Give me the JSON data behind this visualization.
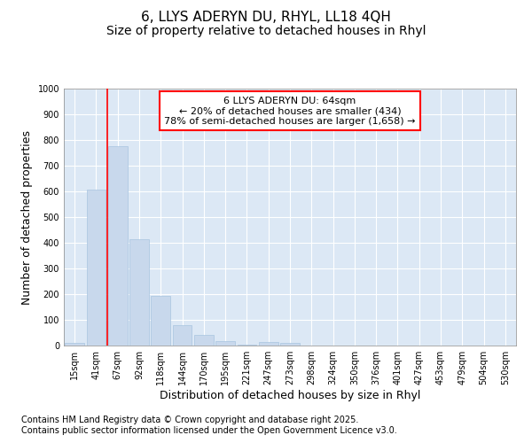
{
  "title_line1": "6, LLYS ADERYN DU, RHYL, LL18 4QH",
  "title_line2": "Size of property relative to detached houses in Rhyl",
  "xlabel": "Distribution of detached houses by size in Rhyl",
  "ylabel": "Number of detached properties",
  "categories": [
    "15sqm",
    "41sqm",
    "67sqm",
    "92sqm",
    "118sqm",
    "144sqm",
    "170sqm",
    "195sqm",
    "221sqm",
    "247sqm",
    "273sqm",
    "298sqm",
    "324sqm",
    "350sqm",
    "376sqm",
    "401sqm",
    "427sqm",
    "453sqm",
    "479sqm",
    "504sqm",
    "530sqm"
  ],
  "values": [
    12,
    608,
    775,
    413,
    192,
    78,
    40,
    17,
    5,
    15,
    10,
    0,
    0,
    0,
    0,
    0,
    0,
    0,
    0,
    0,
    0
  ],
  "bar_color": "#c8d8ec",
  "bar_edgecolor": "#a8c4e0",
  "redline_index": 2,
  "ylim": [
    0,
    1000
  ],
  "yticks": [
    0,
    100,
    200,
    300,
    400,
    500,
    600,
    700,
    800,
    900,
    1000
  ],
  "annotation_box_text": "6 LLYS ADERYN DU: 64sqm\n← 20% of detached houses are smaller (434)\n78% of semi-detached houses are larger (1,658) →",
  "footer_line1": "Contains HM Land Registry data © Crown copyright and database right 2025.",
  "footer_line2": "Contains public sector information licensed under the Open Government Licence v3.0.",
  "background_color": "#ffffff",
  "plot_background": "#dce8f5",
  "grid_color": "#ffffff",
  "title_fontsize": 11,
  "subtitle_fontsize": 10,
  "axis_label_fontsize": 9,
  "tick_fontsize": 7,
  "annotation_fontsize": 8,
  "footer_fontsize": 7
}
